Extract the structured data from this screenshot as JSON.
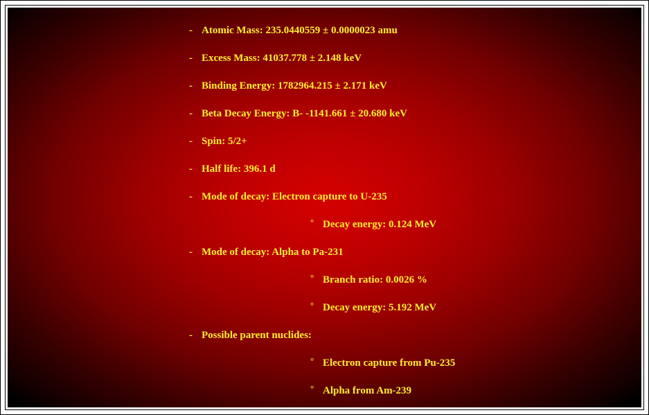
{
  "colors": {
    "text": "#ffee33",
    "bg_center": "#d40000",
    "bg_edge": "#000000",
    "frame_border": "#000000",
    "frame_fill": "#ffffff"
  },
  "typography": {
    "family": "Times New Roman",
    "weight": "bold",
    "size_pt": 11
  },
  "bullet_main": "-",
  "bullet_sub": "°",
  "items": [
    {
      "text": "Atomic Mass: 235.0440559 ± 0.0000023 amu",
      "sub": []
    },
    {
      "text": "Excess Mass: 41037.778 ± 2.148 keV",
      "sub": []
    },
    {
      "text": "Binding Energy: 1782964.215 ± 2.171 keV",
      "sub": []
    },
    {
      "text": "Beta Decay Energy: B- -1141.661 ± 20.680 keV",
      "sub": []
    },
    {
      "text": "Spin: 5/2+",
      "sub": []
    },
    {
      "text": "Half life: 396.1 d",
      "sub": []
    },
    {
      "text": "Mode of decay: Electron capture to U-235",
      "sub": [
        "Decay energy: 0.124 MeV"
      ]
    },
    {
      "text": "Mode of decay: Alpha to Pa-231",
      "sub": [
        "Branch ratio: 0.0026 %",
        "Decay energy: 5.192 MeV"
      ]
    },
    {
      "text": "Possible parent nuclides:",
      "sub": [
        "Electron capture from Pu-235",
        "Alpha from Am-239"
      ]
    }
  ]
}
